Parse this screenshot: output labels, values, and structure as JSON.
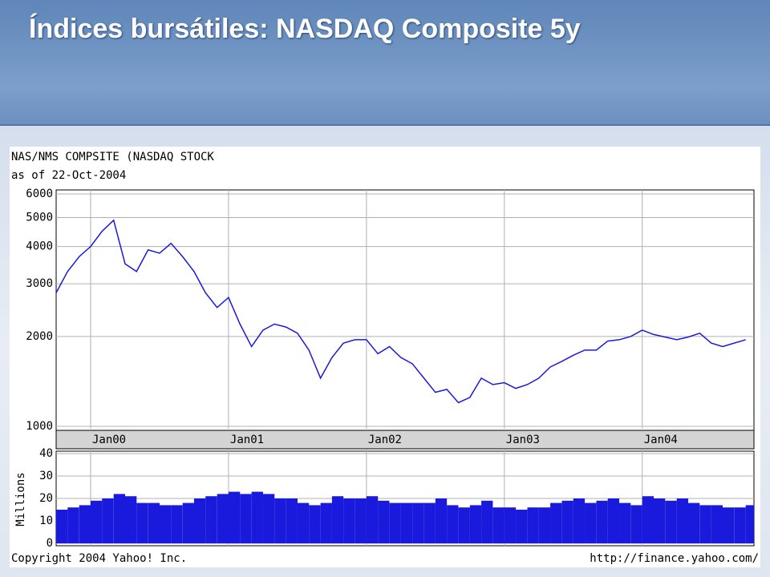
{
  "slide": {
    "title": "Índices bursátiles: NASDAQ Composite 5y"
  },
  "chart_data": [
    {
      "type": "line",
      "title": "NAS/NMS COMPSITE (NASDAQ STOCK",
      "subtitle": "as of 22-Oct-2004",
      "log_scale": true,
      "grid": true,
      "color": "#1a1adc",
      "x": [
        1999.75,
        1999.833,
        1999.917,
        2000,
        2000.083,
        2000.167,
        2000.25,
        2000.333,
        2000.417,
        2000.5,
        2000.583,
        2000.667,
        2000.75,
        2000.833,
        2000.917,
        2001,
        2001.083,
        2001.167,
        2001.25,
        2001.333,
        2001.417,
        2001.5,
        2001.583,
        2001.667,
        2001.75,
        2001.833,
        2001.917,
        2002,
        2002.083,
        2002.167,
        2002.25,
        2002.333,
        2002.417,
        2002.5,
        2002.583,
        2002.667,
        2002.75,
        2002.833,
        2002.917,
        2003,
        2003.083,
        2003.167,
        2003.25,
        2003.333,
        2003.417,
        2003.5,
        2003.583,
        2003.667,
        2003.75,
        2003.833,
        2003.917,
        2004,
        2004.083,
        2004.167,
        2004.25,
        2004.333,
        2004.417,
        2004.5,
        2004.583,
        2004.667,
        2004.75
      ],
      "values": [
        2800,
        3300,
        3700,
        4000,
        4500,
        4900,
        3500,
        3300,
        3900,
        3800,
        4100,
        3700,
        3300,
        2800,
        2500,
        2700,
        2200,
        1850,
        2100,
        2200,
        2150,
        2050,
        1800,
        1450,
        1700,
        1900,
        1950,
        1950,
        1750,
        1850,
        1700,
        1620,
        1450,
        1300,
        1330,
        1200,
        1250,
        1450,
        1380,
        1400,
        1340,
        1380,
        1450,
        1580,
        1650,
        1730,
        1800,
        1800,
        1930,
        1950,
        2000,
        2100,
        2030,
        1990,
        1950,
        1990,
        2050,
        1900,
        1850,
        1900,
        1950
      ],
      "xlim": [
        1999.75,
        2004.81
      ],
      "xticks": [
        {
          "value": 2000,
          "label": "Jan00"
        },
        {
          "value": 2001,
          "label": "Jan01"
        },
        {
          "value": 2002,
          "label": "Jan02"
        },
        {
          "value": 2003,
          "label": "Jan03"
        },
        {
          "value": 2004,
          "label": "Jan04"
        }
      ],
      "ylim": [
        1000,
        6000
      ],
      "yticks": [
        1000,
        2000,
        3000,
        4000,
        5000,
        6000
      ]
    },
    {
      "type": "bar",
      "ylabel": "Millions",
      "grid": true,
      "color": "#1a1adc",
      "x": [
        1999.75,
        1999.833,
        1999.917,
        2000,
        2000.083,
        2000.167,
        2000.25,
        2000.333,
        2000.417,
        2000.5,
        2000.583,
        2000.667,
        2000.75,
        2000.833,
        2000.917,
        2001,
        2001.083,
        2001.167,
        2001.25,
        2001.333,
        2001.417,
        2001.5,
        2001.583,
        2001.667,
        2001.75,
        2001.833,
        2001.917,
        2002,
        2002.083,
        2002.167,
        2002.25,
        2002.333,
        2002.417,
        2002.5,
        2002.583,
        2002.667,
        2002.75,
        2002.833,
        2002.917,
        2003,
        2003.083,
        2003.167,
        2003.25,
        2003.333,
        2003.417,
        2003.5,
        2003.583,
        2003.667,
        2003.75,
        2003.833,
        2003.917,
        2004,
        2004.083,
        2004.167,
        2004.25,
        2004.333,
        2004.417,
        2004.5,
        2004.583,
        2004.667,
        2004.75
      ],
      "values": [
        15,
        16,
        17,
        19,
        20,
        22,
        21,
        18,
        18,
        17,
        17,
        18,
        20,
        21,
        22,
        23,
        22,
        23,
        22,
        20,
        20,
        18,
        17,
        18,
        21,
        20,
        20,
        21,
        19,
        18,
        18,
        18,
        18,
        20,
        17,
        16,
        17,
        19,
        16,
        16,
        15,
        16,
        16,
        18,
        19,
        20,
        18,
        19,
        20,
        18,
        17,
        21,
        20,
        19,
        20,
        18,
        17,
        17,
        16,
        16,
        17
      ],
      "xlim": [
        1999.75,
        2004.81
      ],
      "ylim": [
        0,
        40
      ],
      "yticks": [
        0,
        10,
        20,
        30,
        40
      ]
    }
  ],
  "footer": {
    "copyright": "Copyright 2004 Yahoo! Inc.",
    "url": "http://finance.yahoo.com/"
  }
}
